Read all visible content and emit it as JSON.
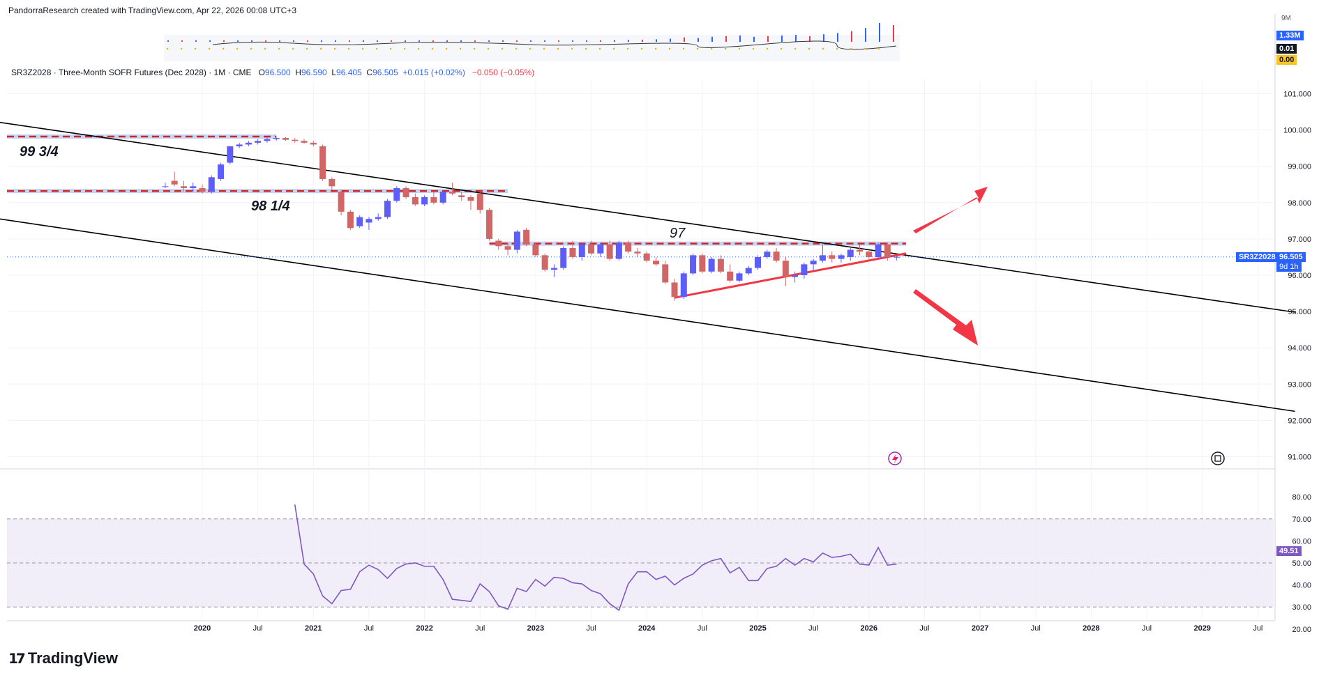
{
  "header": {
    "credit": "PandorraResearch created with TradingView.com, Apr 22, 2026 00:08 UTC+3"
  },
  "legend": {
    "symbol_desc": "SR3Z2028 · Three-Month SOFR Futures (Dec 2028) · 1M · CME",
    "open_label": "O",
    "open": "96.500",
    "high_label": "H",
    "high": "96.590",
    "low_label": "L",
    "low": "96.405",
    "close_label": "C",
    "close": "96.505",
    "change": "+0.015 (+0.02%)",
    "change2": "−0.050 (−0.05%)"
  },
  "price_tag": {
    "symbol": "SR3Z2028",
    "price": "96.505",
    "countdown": "9d 1h"
  },
  "volume_tags": {
    "top": "9M",
    "volume": "1.33M",
    "val1": "0.01",
    "val2": "0.00"
  },
  "rsi_tag": "49.51",
  "annotations": {
    "level1": "99 3/4",
    "level2": "98 1/4",
    "level3": "97"
  },
  "brand": {
    "name": "TradingView"
  },
  "colors": {
    "up": "#2962ff",
    "up_alt": "#5d5dfa",
    "down": "#d16666",
    "rsi": "#7e57c2",
    "arrow": "#f23645",
    "line": "#000000"
  },
  "chart_data": [
    {
      "type": "candlestick",
      "title": "SR3Z2028 · Three-Month SOFR Futures (Dec 2028) · 1M · CME",
      "y_ticks": [
        "101.000",
        "100.000",
        "99.000",
        "98.000",
        "97.000",
        "96.000",
        "95.000",
        "94.000",
        "93.000",
        "92.000",
        "91.000"
      ],
      "ylim": [
        90.7,
        101.9
      ],
      "x_ticks": [
        "2020",
        "Jul",
        "2021",
        "Jul",
        "2022",
        "Jul",
        "2023",
        "Jul",
        "2024",
        "Jul",
        "2025",
        "Jul",
        "2026",
        "Jul",
        "2027",
        "Jul",
        "2028",
        "Jul",
        "2029",
        "Jul"
      ],
      "candles": [
        {
          "date": "2019-09",
          "o": 98.45,
          "h": 98.55,
          "l": 98.4,
          "c": 98.45
        },
        {
          "date": "2019-10",
          "o": 98.6,
          "h": 98.85,
          "l": 98.45,
          "c": 98.5
        },
        {
          "date": "2019-11",
          "o": 98.45,
          "h": 98.6,
          "l": 98.3,
          "c": 98.4
        },
        {
          "date": "2019-12",
          "o": 98.4,
          "h": 98.55,
          "l": 98.3,
          "c": 98.45
        },
        {
          "date": "2020-01",
          "o": 98.4,
          "h": 98.5,
          "l": 98.25,
          "c": 98.3
        },
        {
          "date": "2020-02",
          "o": 98.3,
          "h": 98.75,
          "l": 98.25,
          "c": 98.7
        },
        {
          "date": "2020-03",
          "o": 98.65,
          "h": 99.1,
          "l": 98.6,
          "c": 99.05
        },
        {
          "date": "2020-04",
          "o": 99.1,
          "h": 99.55,
          "l": 99.05,
          "c": 99.55
        },
        {
          "date": "2020-05",
          "o": 99.55,
          "h": 99.65,
          "l": 99.5,
          "c": 99.6
        },
        {
          "date": "2020-06",
          "o": 99.6,
          "h": 99.7,
          "l": 99.55,
          "c": 99.65
        },
        {
          "date": "2020-07",
          "o": 99.65,
          "h": 99.75,
          "l": 99.6,
          "c": 99.7
        },
        {
          "date": "2020-08",
          "o": 99.7,
          "h": 99.8,
          "l": 99.65,
          "c": 99.75
        },
        {
          "date": "2020-09",
          "o": 99.75,
          "h": 99.8,
          "l": 99.7,
          "c": 99.78
        },
        {
          "date": "2020-10",
          "o": 99.78,
          "h": 99.8,
          "l": 99.7,
          "c": 99.73
        },
        {
          "date": "2020-11",
          "o": 99.73,
          "h": 99.78,
          "l": 99.65,
          "c": 99.7
        },
        {
          "date": "2020-12",
          "o": 99.7,
          "h": 99.75,
          "l": 99.62,
          "c": 99.65
        },
        {
          "date": "2021-01",
          "o": 99.65,
          "h": 99.7,
          "l": 99.55,
          "c": 99.6
        },
        {
          "date": "2021-02",
          "o": 99.55,
          "h": 99.6,
          "l": 98.6,
          "c": 98.65
        },
        {
          "date": "2021-03",
          "o": 98.65,
          "h": 98.7,
          "l": 98.35,
          "c": 98.45
        },
        {
          "date": "2021-04",
          "o": 98.3,
          "h": 98.35,
          "l": 97.65,
          "c": 97.75
        },
        {
          "date": "2021-05",
          "o": 97.75,
          "h": 97.8,
          "l": 97.25,
          "c": 97.3
        },
        {
          "date": "2021-06",
          "o": 97.35,
          "h": 97.65,
          "l": 97.3,
          "c": 97.6
        },
        {
          "date": "2021-07",
          "o": 97.45,
          "h": 97.6,
          "l": 97.25,
          "c": 97.55
        },
        {
          "date": "2021-08",
          "o": 97.55,
          "h": 97.7,
          "l": 97.5,
          "c": 97.6
        },
        {
          "date": "2021-09",
          "o": 97.6,
          "h": 98.1,
          "l": 97.55,
          "c": 98.05
        },
        {
          "date": "2021-10",
          "o": 98.05,
          "h": 98.45,
          "l": 98.0,
          "c": 98.4
        },
        {
          "date": "2021-11",
          "o": 98.4,
          "h": 98.45,
          "l": 98.1,
          "c": 98.15
        },
        {
          "date": "2021-12",
          "o": 98.15,
          "h": 98.25,
          "l": 97.9,
          "c": 97.95
        },
        {
          "date": "2022-01",
          "o": 97.95,
          "h": 98.2,
          "l": 97.9,
          "c": 98.15
        },
        {
          "date": "2022-02",
          "o": 98.15,
          "h": 98.3,
          "l": 97.95,
          "c": 98.0
        },
        {
          "date": "2022-03",
          "o": 98.0,
          "h": 98.35,
          "l": 97.95,
          "c": 98.3
        },
        {
          "date": "2022-04",
          "o": 98.3,
          "h": 98.55,
          "l": 98.2,
          "c": 98.25
        },
        {
          "date": "2022-05",
          "o": 98.2,
          "h": 98.3,
          "l": 98.05,
          "c": 98.15
        },
        {
          "date": "2022-06",
          "o": 98.15,
          "h": 98.2,
          "l": 97.8,
          "c": 98.05
        },
        {
          "date": "2022-07",
          "o": 98.25,
          "h": 98.3,
          "l": 97.7,
          "c": 97.8
        },
        {
          "date": "2022-08",
          "o": 97.8,
          "h": 97.85,
          "l": 96.95,
          "c": 97.0
        },
        {
          "date": "2022-09",
          "o": 96.95,
          "h": 97.0,
          "l": 96.7,
          "c": 96.8
        },
        {
          "date": "2022-10",
          "o": 96.8,
          "h": 96.9,
          "l": 96.55,
          "c": 96.7
        },
        {
          "date": "2022-11",
          "o": 96.7,
          "h": 97.25,
          "l": 96.6,
          "c": 97.2
        },
        {
          "date": "2022-12",
          "o": 97.25,
          "h": 97.3,
          "l": 96.8,
          "c": 96.85
        },
        {
          "date": "2023-01",
          "o": 96.85,
          "h": 96.9,
          "l": 96.5,
          "c": 96.55
        },
        {
          "date": "2023-02",
          "o": 96.55,
          "h": 96.6,
          "l": 96.1,
          "c": 96.15
        },
        {
          "date": "2023-03",
          "o": 96.15,
          "h": 96.3,
          "l": 95.95,
          "c": 96.2
        },
        {
          "date": "2023-04",
          "o": 96.2,
          "h": 96.8,
          "l": 96.15,
          "c": 96.75
        },
        {
          "date": "2023-05",
          "o": 96.75,
          "h": 96.95,
          "l": 96.45,
          "c": 96.5
        },
        {
          "date": "2023-06",
          "o": 96.5,
          "h": 96.9,
          "l": 96.4,
          "c": 96.85
        },
        {
          "date": "2023-07",
          "o": 96.85,
          "h": 96.95,
          "l": 96.55,
          "c": 96.6
        },
        {
          "date": "2023-08",
          "o": 96.6,
          "h": 96.9,
          "l": 96.5,
          "c": 96.85
        },
        {
          "date": "2023-09",
          "o": 96.85,
          "h": 96.95,
          "l": 96.4,
          "c": 96.45
        },
        {
          "date": "2023-10",
          "o": 96.45,
          "h": 96.95,
          "l": 96.4,
          "c": 96.9
        },
        {
          "date": "2023-11",
          "o": 96.9,
          "h": 96.95,
          "l": 96.6,
          "c": 96.65
        },
        {
          "date": "2023-12",
          "o": 96.65,
          "h": 96.75,
          "l": 96.5,
          "c": 96.6
        },
        {
          "date": "2024-01",
          "o": 96.6,
          "h": 96.65,
          "l": 96.35,
          "c": 96.4
        },
        {
          "date": "2024-02",
          "o": 96.4,
          "h": 96.5,
          "l": 96.25,
          "c": 96.3
        },
        {
          "date": "2024-03",
          "o": 96.3,
          "h": 96.4,
          "l": 95.75,
          "c": 95.8
        },
        {
          "date": "2024-04",
          "o": 95.8,
          "h": 95.9,
          "l": 95.3,
          "c": 95.4
        },
        {
          "date": "2024-05",
          "o": 95.4,
          "h": 96.1,
          "l": 95.35,
          "c": 96.05
        },
        {
          "date": "2024-06",
          "o": 96.05,
          "h": 96.6,
          "l": 96.0,
          "c": 96.55
        },
        {
          "date": "2024-07",
          "o": 96.55,
          "h": 96.6,
          "l": 96.05,
          "c": 96.1
        },
        {
          "date": "2024-08",
          "o": 96.1,
          "h": 96.5,
          "l": 96.05,
          "c": 96.45
        },
        {
          "date": "2024-09",
          "o": 96.45,
          "h": 96.55,
          "l": 96.05,
          "c": 96.1
        },
        {
          "date": "2024-10",
          "o": 96.1,
          "h": 96.3,
          "l": 95.8,
          "c": 95.85
        },
        {
          "date": "2024-11",
          "o": 95.85,
          "h": 96.1,
          "l": 95.8,
          "c": 96.05
        },
        {
          "date": "2024-12",
          "o": 96.05,
          "h": 96.25,
          "l": 96.0,
          "c": 96.2
        },
        {
          "date": "2025-01",
          "o": 96.2,
          "h": 96.55,
          "l": 96.15,
          "c": 96.5
        },
        {
          "date": "2025-02",
          "o": 96.5,
          "h": 96.7,
          "l": 96.45,
          "c": 96.65
        },
        {
          "date": "2025-03",
          "o": 96.65,
          "h": 96.75,
          "l": 96.35,
          "c": 96.4
        },
        {
          "date": "2025-04",
          "o": 96.4,
          "h": 96.5,
          "l": 95.7,
          "c": 95.95
        },
        {
          "date": "2025-05",
          "o": 95.95,
          "h": 96.1,
          "l": 95.8,
          "c": 96.0
        },
        {
          "date": "2025-06",
          "o": 96.0,
          "h": 96.35,
          "l": 95.9,
          "c": 96.3
        },
        {
          "date": "2025-07",
          "o": 96.3,
          "h": 96.45,
          "l": 96.1,
          "c": 96.4
        },
        {
          "date": "2025-08",
          "o": 96.4,
          "h": 96.85,
          "l": 96.35,
          "c": 96.55
        },
        {
          "date": "2025-09",
          "o": 96.55,
          "h": 96.65,
          "l": 96.35,
          "c": 96.45
        },
        {
          "date": "2025-10",
          "o": 96.45,
          "h": 96.6,
          "l": 96.35,
          "c": 96.55
        },
        {
          "date": "2025-11",
          "o": 96.5,
          "h": 96.75,
          "l": 96.4,
          "c": 96.7
        },
        {
          "date": "2025-12",
          "o": 96.7,
          "h": 96.85,
          "l": 96.55,
          "c": 96.65
        },
        {
          "date": "2026-01",
          "o": 96.65,
          "h": 96.7,
          "l": 96.45,
          "c": 96.5
        },
        {
          "date": "2026-02",
          "o": 96.5,
          "h": 96.9,
          "l": 96.45,
          "c": 96.85
        },
        {
          "date": "2026-03",
          "o": 96.85,
          "h": 96.9,
          "l": 96.4,
          "c": 96.5
        },
        {
          "date": "2026-04",
          "o": 96.5,
          "h": 96.59,
          "l": 96.405,
          "c": 96.505
        }
      ],
      "trendlines": [
        {
          "name": "channel-upper",
          "from": {
            "date": "2016-06",
            "price": 101.0
          },
          "to": {
            "date": "2029-11",
            "price": 94.98
          }
        },
        {
          "name": "channel-lower",
          "from": {
            "date": "2016-06",
            "price": 98.35
          },
          "to": {
            "date": "2029-11",
            "price": 92.25
          }
        },
        {
          "name": "support-rising",
          "from": {
            "date": "2024-04",
            "price": 95.38
          },
          "to": {
            "date": "2026-05",
            "price": 96.6
          }
        }
      ],
      "levels": [
        {
          "label": "99 3/4",
          "price": 99.82,
          "from": "2016-06",
          "to": "2020-09"
        },
        {
          "label": "98 1/4",
          "price": 98.32,
          "from": "2016-06",
          "to": "2022-10"
        },
        {
          "label": "97",
          "price": 96.87,
          "from": "2022-08",
          "to": "2026-05"
        }
      ]
    },
    {
      "type": "line",
      "title": "RSI",
      "y_ticks": [
        "80.00",
        "70.00",
        "60.00",
        "50.00",
        "40.00",
        "30.00",
        "20.00"
      ],
      "ylim": [
        19,
        83
      ],
      "band": [
        30,
        70
      ],
      "midline": 50,
      "x": [
        "2020-11",
        "2020-12",
        "2021-01",
        "2021-02",
        "2021-03",
        "2021-04",
        "2021-05",
        "2021-06",
        "2021-07",
        "2021-08",
        "2021-09",
        "2021-10",
        "2021-11",
        "2021-12",
        "2022-01",
        "2022-02",
        "2022-03",
        "2022-04",
        "2022-05",
        "2022-06",
        "2022-07",
        "2022-08",
        "2022-09",
        "2022-10",
        "2022-11",
        "2022-12",
        "2023-01",
        "2023-02",
        "2023-03",
        "2023-04",
        "2023-05",
        "2023-06",
        "2023-07",
        "2023-08",
        "2023-09",
        "2023-10",
        "2023-11",
        "2023-12",
        "2024-01",
        "2024-02",
        "2024-03",
        "2024-04",
        "2024-05",
        "2024-06",
        "2024-07",
        "2024-08",
        "2024-09",
        "2024-10",
        "2024-11",
        "2024-12",
        "2025-01",
        "2025-02",
        "2025-03",
        "2025-04",
        "2025-05",
        "2025-06",
        "2025-07",
        "2025-08",
        "2025-09",
        "2025-10",
        "2025-11",
        "2025-12",
        "2026-01",
        "2026-02",
        "2026-03",
        "2026-04"
      ],
      "values": [
        76.5,
        49.5,
        45,
        35,
        31.5,
        37.5,
        38,
        46,
        49,
        47,
        43,
        47.5,
        49.5,
        50,
        48.5,
        48.5,
        42.5,
        33.5,
        33,
        32.5,
        40.5,
        37,
        30.5,
        29,
        38.5,
        37,
        42.5,
        39.5,
        43.5,
        43,
        41,
        40.5,
        37.5,
        36,
        31.5,
        28.5,
        40.5,
        46,
        46,
        42.5,
        44,
        40,
        43,
        45,
        49,
        51,
        52,
        45.5,
        48,
        42,
        42,
        47.5,
        48.5,
        52,
        49,
        52,
        50.5,
        54.5,
        52.5,
        53,
        54,
        49.5,
        49,
        57,
        49,
        49.51
      ]
    },
    {
      "type": "bar",
      "title": "Volume",
      "values": [
        0.02,
        0.02,
        0.03,
        0.03,
        0.03,
        0.03,
        0.03,
        0.04,
        0.04,
        0.04,
        0.04,
        0.04,
        0.04,
        0.04,
        0.04,
        0.04,
        0.05,
        0.05,
        0.05,
        0.05,
        0.05,
        0.05,
        0.06,
        0.06,
        0.06,
        0.07,
        0.07,
        0.08,
        0.09,
        0.1,
        0.11,
        0.12,
        0.13,
        0.15,
        0.17,
        0.2,
        0.25,
        0.35,
        0.3,
        0.4,
        0.45,
        0.5,
        0.4,
        0.45,
        0.5,
        0.55,
        0.45,
        0.6,
        0.7,
        0.85,
        1.1,
        1.5,
        1.33
      ]
    }
  ]
}
